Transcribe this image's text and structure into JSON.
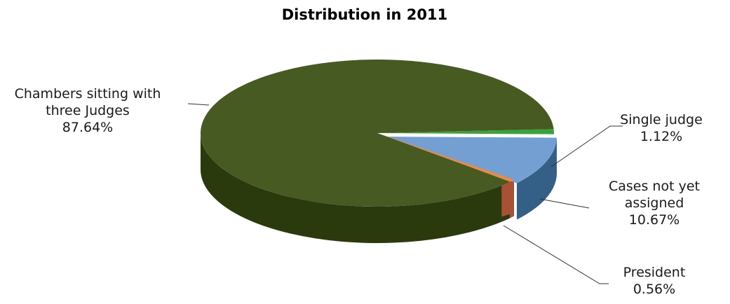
{
  "chart_data": {
    "type": "pie",
    "title": "Distribution in 2011",
    "slices": [
      {
        "label_lines": [
          "Chambers sitting with",
          "three Judges"
        ],
        "value_label": "87.64%",
        "value": 87.64,
        "top_color": "#465a22",
        "side_color": "#2b3a0c"
      },
      {
        "label_lines": [
          "Single judge"
        ],
        "value_label": "1.12%",
        "value": 1.12,
        "top_color": "#37a33a",
        "side_color": "#1e6a20"
      },
      {
        "label_lines": [
          "Cases not yet",
          "assigned"
        ],
        "value_label": "10.67%",
        "value": 10.67,
        "top_color": "#739fd3",
        "side_color": "#345f86"
      },
      {
        "label_lines": [
          "President"
        ],
        "value_label": "0.56%",
        "value": 0.56,
        "top_color": "#f08a3a",
        "side_color": "#a85135"
      }
    ]
  }
}
